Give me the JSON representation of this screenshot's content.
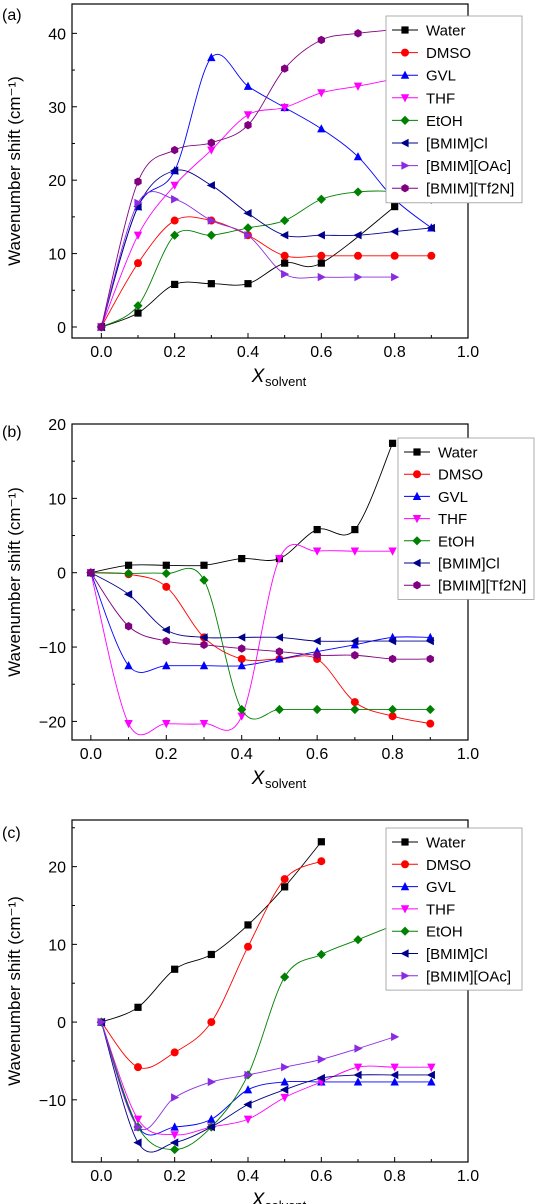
{
  "chart_data": [
    {
      "type": "scatter",
      "panel_label": "(a)",
      "xlabel_main": "X",
      "xlabel_sub": "solvent",
      "ylabel": "Wavenumber shift (cm⁻¹)",
      "xlim": [
        -0.08,
        1.0
      ],
      "ylim": [
        -1.5,
        44
      ],
      "xticks": [
        0.0,
        0.2,
        0.4,
        0.6,
        0.8,
        1.0
      ],
      "yticks": [
        0,
        10,
        20,
        30,
        40
      ],
      "legend_position": "top-right",
      "series": [
        {
          "name": "Water",
          "color": "#000000",
          "marker": "square",
          "x": [
            0,
            0.1,
            0.2,
            0.3,
            0.4,
            0.5,
            0.6,
            0.8
          ],
          "y": [
            0,
            1.9,
            5.8,
            5.9,
            5.9,
            8.7,
            8.7,
            16.4
          ]
        },
        {
          "name": "DMSO",
          "color": "#ff0000",
          "marker": "circle",
          "x": [
            0,
            0.1,
            0.2,
            0.3,
            0.4,
            0.5,
            0.6,
            0.7,
            0.8,
            0.9
          ],
          "y": [
            0,
            8.7,
            14.5,
            14.5,
            12.5,
            9.7,
            9.7,
            9.7,
            9.7,
            9.7
          ]
        },
        {
          "name": "GVL",
          "color": "#0000ff",
          "marker": "triangle-up",
          "x": [
            0,
            0.1,
            0.2,
            0.3,
            0.4,
            0.5,
            0.6,
            0.7,
            0.8,
            0.9
          ],
          "y": [
            0,
            16.4,
            21.3,
            36.7,
            32.8,
            29.9,
            27.0,
            23.2,
            17.4,
            13.5
          ]
        },
        {
          "name": "THF",
          "color": "#ff00ff",
          "marker": "triangle-down",
          "x": [
            0,
            0.1,
            0.2,
            0.3,
            0.4,
            0.5,
            0.6,
            0.7,
            0.8
          ],
          "y": [
            0,
            12.5,
            19.3,
            24.1,
            28.9,
            29.9,
            31.9,
            32.8,
            33.8
          ]
        },
        {
          "name": "EtOH",
          "color": "#008000",
          "marker": "diamond",
          "x": [
            0,
            0.1,
            0.2,
            0.3,
            0.4,
            0.5,
            0.6,
            0.7,
            0.8,
            0.9
          ],
          "y": [
            0,
            2.9,
            12.5,
            12.5,
            13.5,
            14.5,
            17.4,
            18.4,
            18.4,
            17.4
          ]
        },
        {
          "name": "[BMIM]Cl",
          "color": "#00008b",
          "marker": "triangle-left",
          "x": [
            0,
            0.1,
            0.2,
            0.3,
            0.4,
            0.5,
            0.6,
            0.7,
            0.8,
            0.9
          ],
          "y": [
            0,
            16.4,
            21.3,
            19.3,
            15.5,
            12.5,
            12.5,
            12.5,
            13.0,
            13.5
          ]
        },
        {
          "name": "[BMIM][OAc]",
          "color": "#8a2be2",
          "marker": "triangle-right",
          "x": [
            0,
            0.1,
            0.2,
            0.3,
            0.4,
            0.5,
            0.6,
            0.7,
            0.8
          ],
          "y": [
            0,
            16.9,
            17.4,
            14.5,
            12.5,
            7.2,
            6.8,
            6.8,
            6.8
          ]
        },
        {
          "name": "[BMIM][Tf2N]",
          "color": "#800080",
          "marker": "hexagon",
          "x": [
            0,
            0.1,
            0.2,
            0.3,
            0.4,
            0.5,
            0.6,
            0.7,
            0.8
          ],
          "y": [
            0,
            19.8,
            24.1,
            25.1,
            27.5,
            35.2,
            39.1,
            40.0,
            40.5
          ]
        }
      ]
    },
    {
      "type": "scatter",
      "panel_label": "(b)",
      "xlabel_main": "X",
      "xlabel_sub": "solvent",
      "ylabel": "Wavenumber shift (cm⁻¹)",
      "xlim": [
        -0.05,
        1.0
      ],
      "ylim": [
        -22.5,
        20
      ],
      "xticks": [
        0.0,
        0.2,
        0.4,
        0.6,
        0.8,
        1.0
      ],
      "yticks": [
        -20,
        -10,
        0,
        10,
        20
      ],
      "legend_position": "top-right",
      "series": [
        {
          "name": "Water",
          "color": "#000000",
          "marker": "square",
          "x": [
            0,
            0.1,
            0.2,
            0.3,
            0.4,
            0.5,
            0.6,
            0.7,
            0.8
          ],
          "y": [
            0,
            1.0,
            1.0,
            1.0,
            1.9,
            1.9,
            5.8,
            5.8,
            17.4
          ]
        },
        {
          "name": "DMSO",
          "color": "#ff0000",
          "marker": "circle",
          "x": [
            0,
            0.1,
            0.2,
            0.3,
            0.4,
            0.5,
            0.6,
            0.7,
            0.8,
            0.9
          ],
          "y": [
            0,
            -0.2,
            -1.9,
            -8.7,
            -11.6,
            -11.6,
            -11.6,
            -17.4,
            -19.3,
            -20.3
          ]
        },
        {
          "name": "GVL",
          "color": "#0000ff",
          "marker": "triangle-up",
          "x": [
            0,
            0.1,
            0.2,
            0.3,
            0.4,
            0.5,
            0.6,
            0.7,
            0.8,
            0.9
          ],
          "y": [
            0,
            -12.5,
            -12.5,
            -12.5,
            -12.5,
            -11.6,
            -10.6,
            -9.7,
            -8.7,
            -8.7
          ]
        },
        {
          "name": "THF",
          "color": "#ff00ff",
          "marker": "triangle-down",
          "x": [
            0,
            0.1,
            0.2,
            0.3,
            0.4,
            0.5,
            0.6,
            0.7,
            0.8
          ],
          "y": [
            0,
            -20.3,
            -20.3,
            -20.3,
            -19.3,
            1.9,
            2.9,
            2.9,
            2.9
          ]
        },
        {
          "name": "EtOH",
          "color": "#008000",
          "marker": "diamond",
          "x": [
            0,
            0.1,
            0.2,
            0.3,
            0.4,
            0.5,
            0.6,
            0.7,
            0.8,
            0.9
          ],
          "y": [
            0,
            -0.1,
            -0.1,
            -1.0,
            -18.4,
            -18.4,
            -18.4,
            -18.4,
            -18.4,
            -18.4
          ]
        },
        {
          "name": "[BMIM]Cl",
          "color": "#00008b",
          "marker": "triangle-left",
          "x": [
            0,
            0.1,
            0.2,
            0.3,
            0.4,
            0.5,
            0.6,
            0.7,
            0.8,
            0.9
          ],
          "y": [
            0,
            -2.9,
            -7.7,
            -8.7,
            -8.7,
            -8.7,
            -9.2,
            -9.2,
            -9.2,
            -9.2
          ]
        },
        {
          "name": "[BMIM][Tf2N]",
          "color": "#800080",
          "marker": "hexagon",
          "x": [
            0,
            0.1,
            0.2,
            0.3,
            0.4,
            0.5,
            0.6,
            0.7,
            0.8,
            0.9
          ],
          "y": [
            0,
            -7.2,
            -9.2,
            -9.7,
            -10.2,
            -10.6,
            -11.1,
            -11.1,
            -11.6,
            -11.6
          ]
        }
      ]
    },
    {
      "type": "scatter",
      "panel_label": "(c)",
      "xlabel_main": "X",
      "xlabel_sub": "solvent",
      "ylabel": "Wavenumber shift (cm⁻¹)",
      "xlim": [
        -0.08,
        1.0
      ],
      "ylim": [
        -18,
        26
      ],
      "xticks": [
        0.0,
        0.2,
        0.4,
        0.6,
        0.8,
        1.0
      ],
      "yticks": [
        -10,
        0,
        10,
        20
      ],
      "legend_position": "top-right",
      "series": [
        {
          "name": "Water",
          "color": "#000000",
          "marker": "square",
          "x": [
            0,
            0.1,
            0.2,
            0.3,
            0.4,
            0.5,
            0.6
          ],
          "y": [
            0,
            1.9,
            6.8,
            8.7,
            12.5,
            17.4,
            23.2
          ]
        },
        {
          "name": "DMSO",
          "color": "#ff0000",
          "marker": "circle",
          "x": [
            0,
            0.1,
            0.2,
            0.3,
            0.4,
            0.5,
            0.6
          ],
          "y": [
            0,
            -5.8,
            -3.9,
            0,
            9.7,
            18.4,
            20.7
          ]
        },
        {
          "name": "GVL",
          "color": "#0000ff",
          "marker": "triangle-up",
          "x": [
            0,
            0.1,
            0.2,
            0.3,
            0.4,
            0.5,
            0.6,
            0.7,
            0.8,
            0.9
          ],
          "y": [
            0,
            -13.5,
            -13.5,
            -12.5,
            -8.7,
            -7.7,
            -7.7,
            -7.7,
            -7.7,
            -7.7
          ]
        },
        {
          "name": "THF",
          "color": "#ff00ff",
          "marker": "triangle-down",
          "x": [
            0,
            0.1,
            0.2,
            0.3,
            0.4,
            0.5,
            0.6,
            0.7,
            0.8,
            0.9
          ],
          "y": [
            0,
            -12.5,
            -14.5,
            -13.5,
            -12.5,
            -9.7,
            -7.7,
            -5.8,
            -5.8,
            -5.8
          ]
        },
        {
          "name": "EtOH",
          "color": "#008000",
          "marker": "diamond",
          "x": [
            0,
            0.1,
            0.2,
            0.3,
            0.4,
            0.5,
            0.6,
            0.7,
            0.8
          ],
          "y": [
            0,
            -13.5,
            -16.4,
            -13.5,
            -6.8,
            5.8,
            8.7,
            10.6,
            12.5
          ]
        },
        {
          "name": "[BMIM]Cl",
          "color": "#00008b",
          "marker": "triangle-left",
          "x": [
            0,
            0.1,
            0.2,
            0.3,
            0.4,
            0.5,
            0.6,
            0.7,
            0.8,
            0.9
          ],
          "y": [
            0,
            -15.5,
            -15.5,
            -13.5,
            -10.6,
            -8.7,
            -7.2,
            -6.8,
            -6.8,
            -6.8
          ]
        },
        {
          "name": "[BMIM][OAc]",
          "color": "#8a2be2",
          "marker": "triangle-right",
          "x": [
            0,
            0.1,
            0.2,
            0.3,
            0.4,
            0.5,
            0.6,
            0.7,
            0.8
          ],
          "y": [
            0,
            -13.5,
            -9.7,
            -7.7,
            -6.8,
            -5.8,
            -4.8,
            -3.4,
            -1.9
          ]
        }
      ]
    }
  ]
}
